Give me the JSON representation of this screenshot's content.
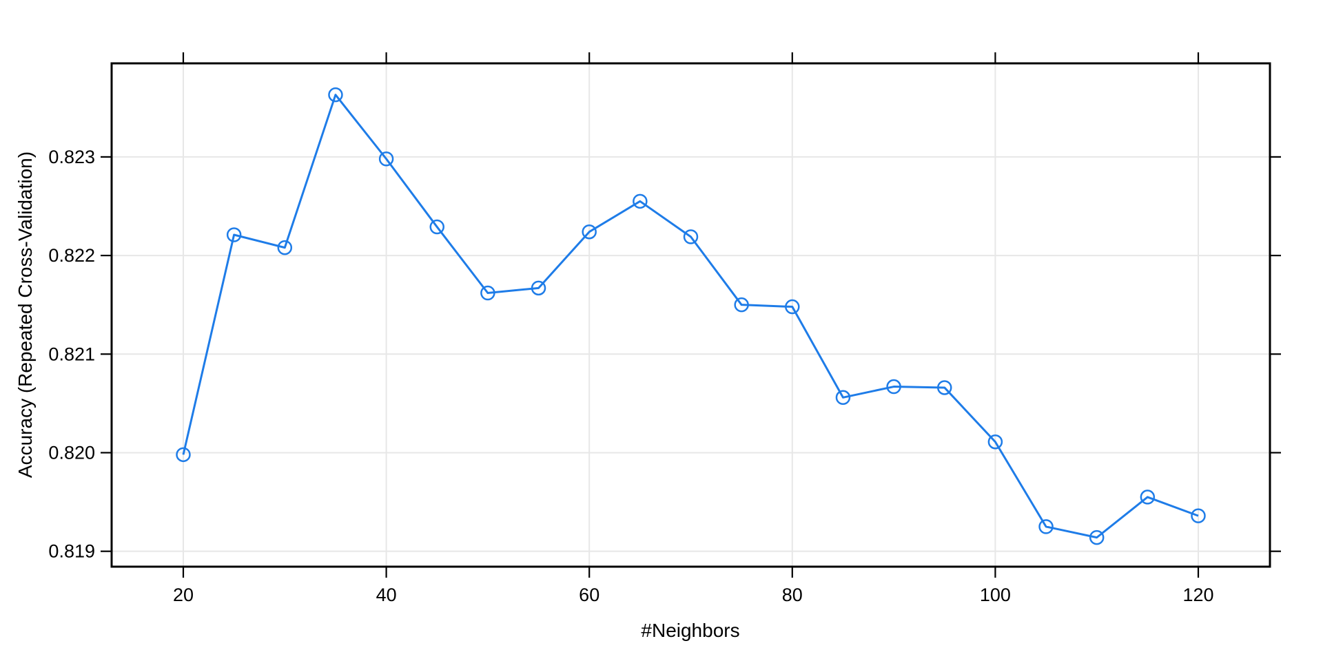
{
  "figure": {
    "background": "#ffffff"
  },
  "chart_data": {
    "type": "line",
    "title": "",
    "xlabel": "#Neighbors",
    "ylabel": "Accuracy (Repeated Cross-Validation)",
    "x": [
      20,
      25,
      30,
      35,
      40,
      45,
      50,
      55,
      60,
      65,
      70,
      75,
      80,
      85,
      90,
      95,
      100,
      105,
      110,
      115,
      120
    ],
    "series": [
      {
        "name": "Accuracy (Repeated Cross-Validation)",
        "values": [
          0.81998,
          0.82221,
          0.82208,
          0.82363,
          0.82298,
          0.82229,
          0.82162,
          0.82167,
          0.82224,
          0.82255,
          0.82219,
          0.8215,
          0.82148,
          0.82056,
          0.82067,
          0.82066,
          0.82011,
          0.81925,
          0.81914,
          0.81955,
          0.81936
        ]
      }
    ],
    "x_ticks": {
      "values": [
        20,
        40,
        60,
        80,
        100,
        120
      ],
      "labels": [
        "20",
        "40",
        "60",
        "80",
        "100",
        "120"
      ]
    },
    "y_ticks": {
      "values": [
        0.819,
        0.82,
        0.821,
        0.822,
        0.823
      ],
      "labels": [
        "0.819",
        "0.820",
        "0.821",
        "0.822",
        "0.823"
      ]
    },
    "xlim": [
      12.94,
      127.06
    ],
    "ylim": [
      0.818844,
      0.823949
    ],
    "grid": true,
    "legend_position": "none",
    "marker": "open-circle",
    "line_style": "solid",
    "colors": {
      "line": "#1E7CE8",
      "grid": "#E7E7E7",
      "axis": "#000000",
      "text": "#000000",
      "background": "#ffffff"
    }
  }
}
